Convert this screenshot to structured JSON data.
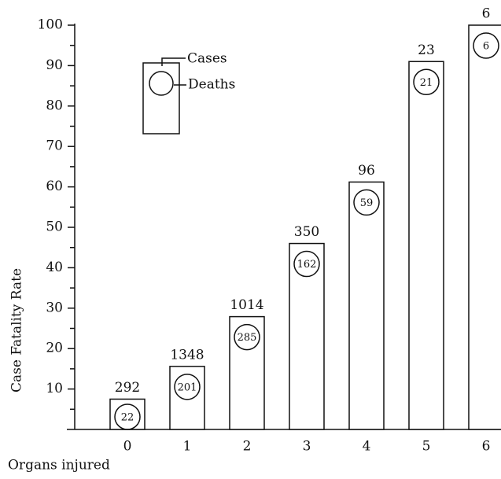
{
  "chart_data": {
    "type": "bar",
    "x_label": "Organs injured",
    "y_label": "Case Fatality Rate",
    "categories": [
      "0",
      "1",
      "2",
      "3",
      "4",
      "5",
      "6"
    ],
    "values": [
      7.5,
      15.6,
      27.9,
      46,
      61.2,
      91,
      100
    ],
    "cases": [
      292,
      1348,
      1014,
      350,
      96,
      23,
      6
    ],
    "deaths": [
      22,
      201,
      285,
      162,
      59,
      21,
      6
    ],
    "legend": {
      "cases": "Cases",
      "deaths": "Deaths"
    },
    "color": "#ffffff",
    "ylim": [
      0,
      100
    ],
    "yticks": [
      10,
      20,
      30,
      40,
      50,
      60,
      70,
      80,
      90,
      100
    ],
    "yminorticks": [
      5,
      15,
      25,
      35,
      45,
      55,
      65,
      75,
      85,
      95
    ]
  }
}
